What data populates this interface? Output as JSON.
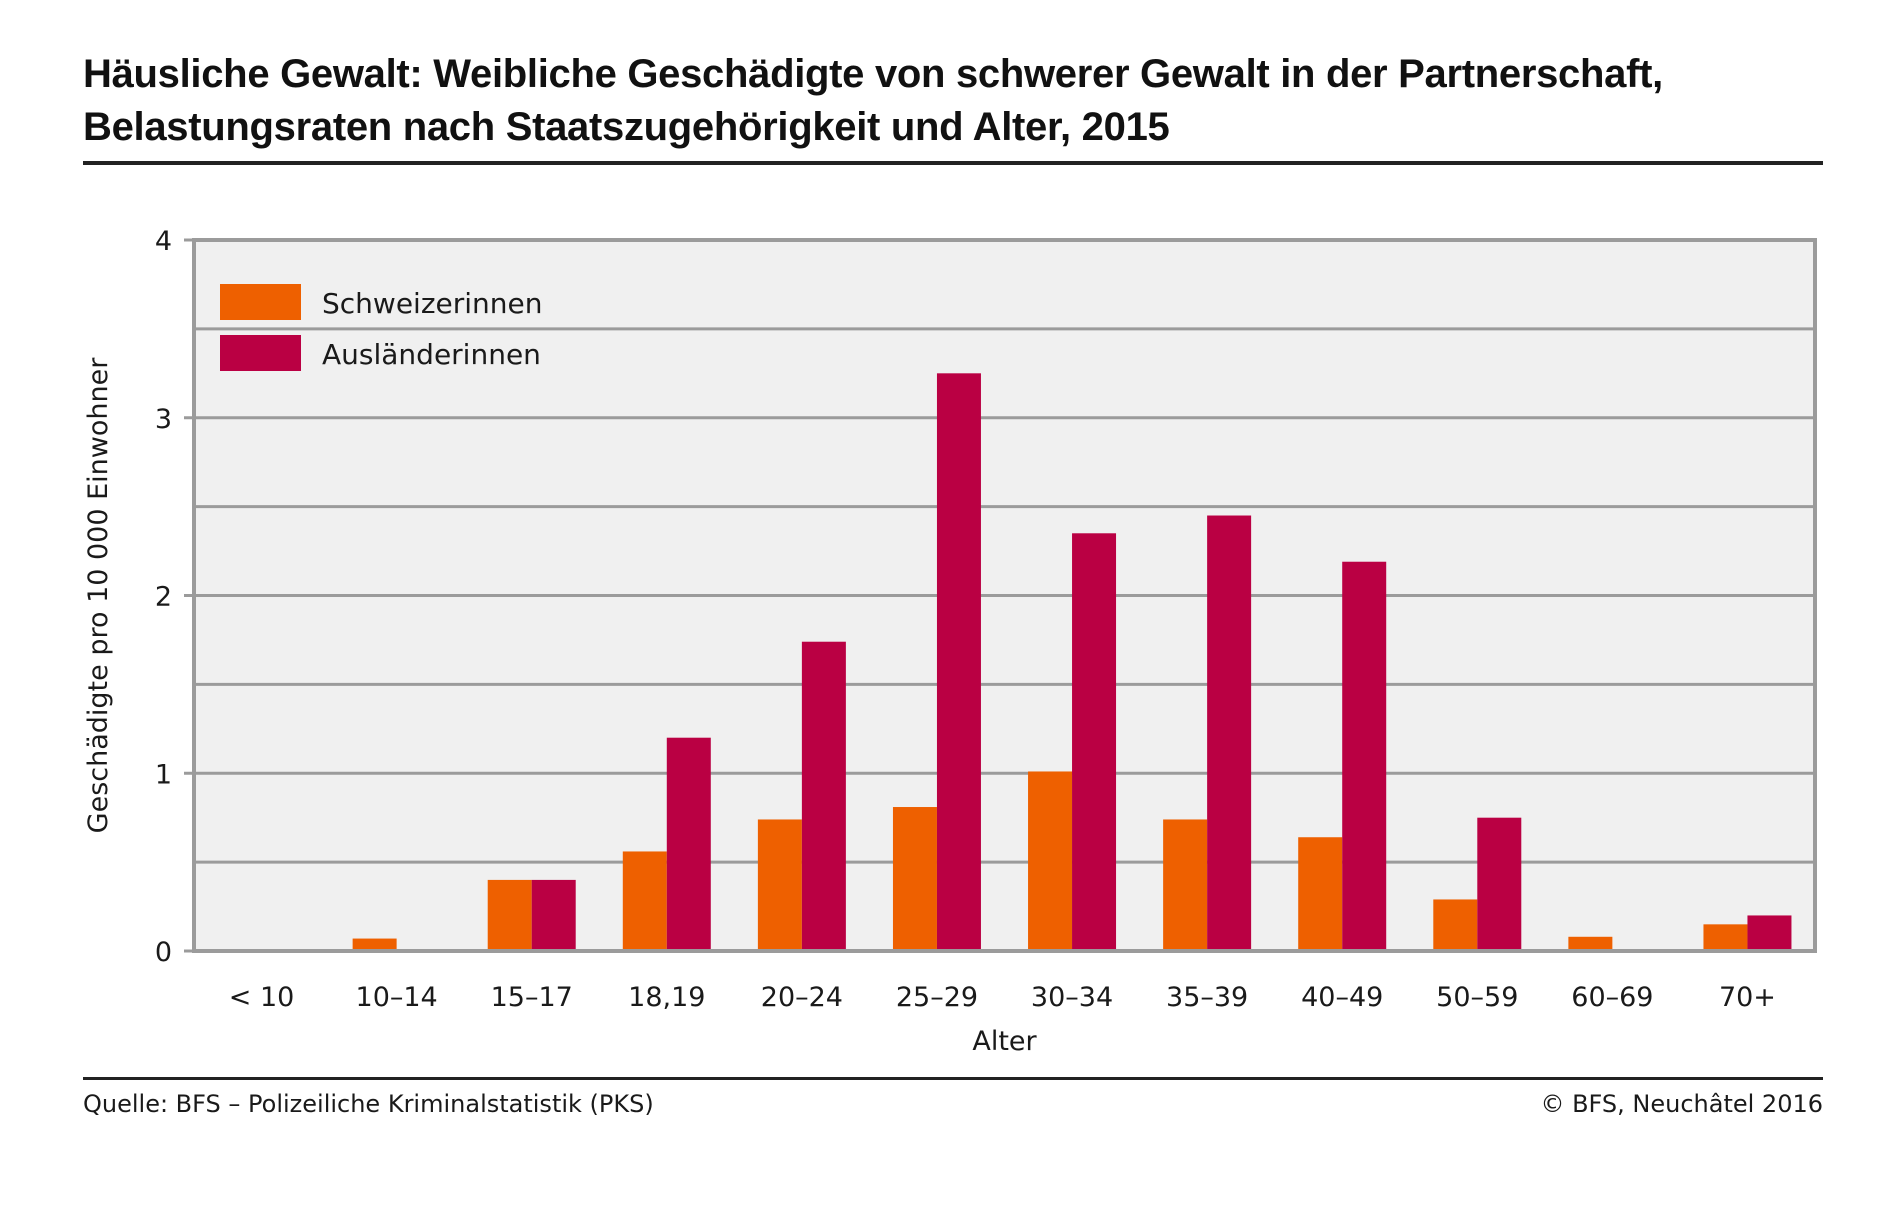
{
  "title": {
    "line1": "Häusliche Gewalt: Weibliche Geschädigte von schwerer Gewalt in der Partnerschaft,",
    "line2": "Belastungsraten nach Staatszugehörigkeit und Alter, 2015"
  },
  "footer": {
    "source": "Quelle: BFS – Polizeiliche Kriminalstatistik (PKS)",
    "copyright": "© BFS, Neuchâtel 2016"
  },
  "chart_data": {
    "type": "bar",
    "title": "Häusliche Gewalt: Weibliche Geschädigte von schwerer Gewalt in der Partnerschaft, Belastungsraten nach Staatszugehörigkeit und Alter, 2015",
    "xlabel": "Alter",
    "ylabel": "Geschädigte pro 10 000 Einwohner",
    "ylim": [
      0,
      4
    ],
    "yticks": [
      0,
      1,
      2,
      3,
      4
    ],
    "ytick_labels": [
      "0",
      "1",
      "2",
      "3",
      "4"
    ],
    "grid_step": 0.5,
    "grid": true,
    "legend_position": "top-left",
    "categories": [
      "< 10",
      "10–14",
      "15–17",
      "18,19",
      "20–24",
      "25–29",
      "30–34",
      "35–39",
      "40–49",
      "50–59",
      "60–69",
      "70+"
    ],
    "series": [
      {
        "name": "Schweizerinnen",
        "color": "#EE6000",
        "values": [
          0,
          0.07,
          0.4,
          0.56,
          0.74,
          0.81,
          1.01,
          0.74,
          0.64,
          0.29,
          0.08,
          0.15
        ]
      },
      {
        "name": "Ausländerinnen",
        "color": "#BA0043",
        "values": [
          0,
          0,
          0.4,
          1.2,
          1.74,
          3.25,
          2.35,
          2.45,
          2.19,
          0.75,
          0,
          0.2
        ]
      }
    ],
    "colors": {
      "plot_background": "#F0F0F0",
      "grid": "#9B9B9B"
    }
  }
}
